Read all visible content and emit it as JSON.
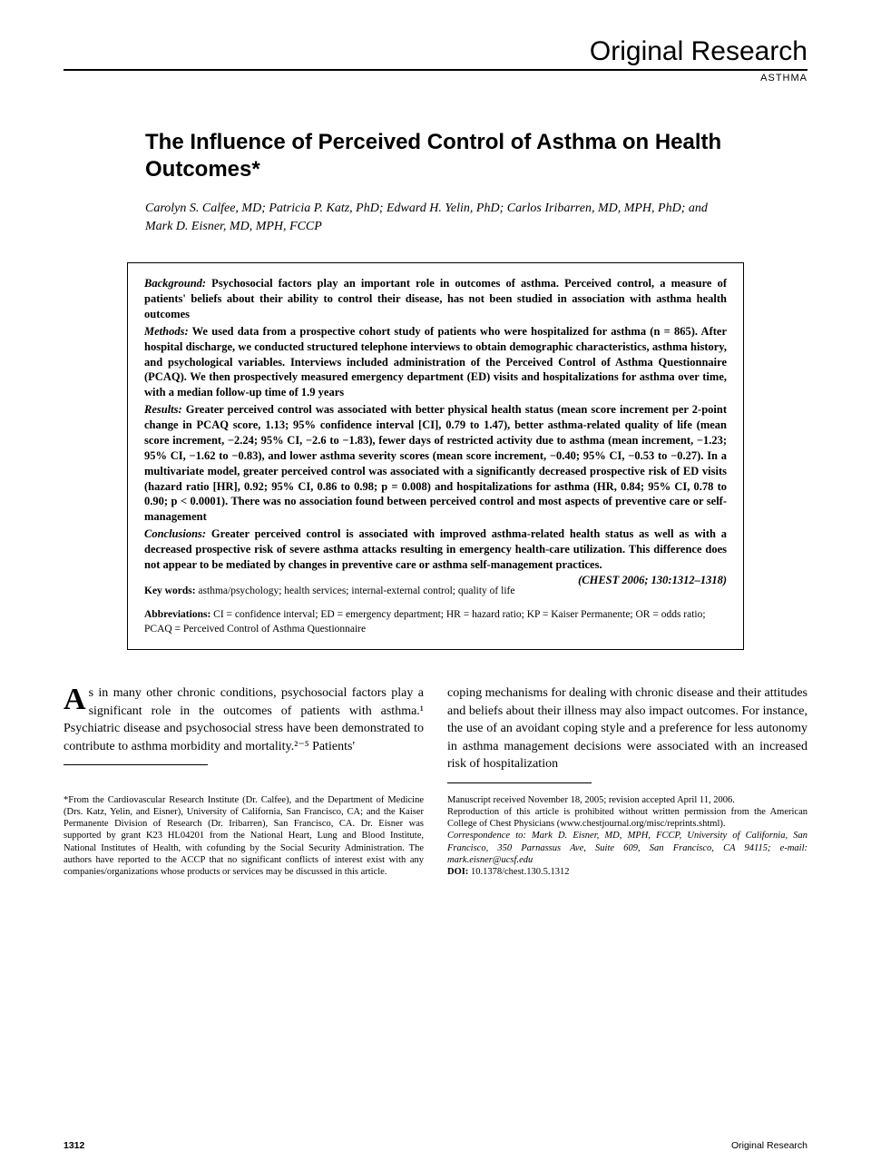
{
  "header": {
    "section_title": "Original Research",
    "section_subtitle": "ASTHMA"
  },
  "article": {
    "title": "The Influence of Perceived Control of Asthma on Health Outcomes*",
    "authors": "Carolyn S. Calfee, MD; Patricia P. Katz, PhD; Edward H. Yelin, PhD; Carlos Iribarren, MD, MPH, PhD; and Mark D. Eisner, MD, MPH, FCCP"
  },
  "abstract": {
    "background_label": "Background:",
    "background": " Psychosocial factors play an important role in outcomes of asthma. Perceived control, a measure of patients' beliefs about their ability to control their disease, has not been studied in association with asthma health outcomes",
    "methods_label": "Methods:",
    "methods": " We used data from a prospective cohort study of patients who were hospitalized for asthma (n = 865). After hospital discharge, we conducted structured telephone interviews to obtain demographic characteristics, asthma history, and psychological variables. Interviews included administration of the Perceived Control of Asthma Questionnaire (PCAQ). We then prospectively measured emergency department (ED) visits and hospitalizations for asthma over time, with a median follow-up time of 1.9 years",
    "results_label": "Results:",
    "results": " Greater perceived control was associated with better physical health status (mean score increment per 2-point change in PCAQ score, 1.13; 95% confidence interval [CI], 0.79 to 1.47), better asthma-related quality of life (mean score increment, −2.24; 95% CI, −2.6 to −1.83), fewer days of restricted activity due to asthma (mean increment, −1.23; 95% CI, −1.62 to −0.83), and lower asthma severity scores (mean score increment, −0.40; 95% CI, −0.53 to −0.27). In a multivariate model, greater perceived control was associated with a significantly decreased prospective risk of ED visits (hazard ratio [HR], 0.92; 95% CI, 0.86 to 0.98; p = 0.008) and hospitalizations for asthma (HR, 0.84; 95% CI, 0.78 to 0.90; p < 0.0001). There was no association found between perceived control and most aspects of preventive care or self-management",
    "conclusions_label": "Conclusions:",
    "conclusions": " Greater perceived control is associated with improved asthma-related health status as well as with a decreased prospective risk of severe asthma attacks resulting in emergency health-care utilization. This difference does not appear to be mediated by changes in preventive care or asthma self-management practices.",
    "citation": "(CHEST 2006; 130:1312–1318)",
    "keywords_label": "Key words:",
    "keywords": " asthma/psychology; health services; internal-external control; quality of life",
    "abbrev_label": "Abbreviations:",
    "abbrev": " CI = confidence interval; ED = emergency department; HR = hazard ratio; KP = Kaiser Permanente; OR = odds ratio; PCAQ = Perceived Control of Asthma Questionnaire"
  },
  "body": {
    "dropcap": "A",
    "col1": "s in many other chronic conditions, psychosocial factors play a significant role in the outcomes of patients with asthma.¹ Psychiatric disease and psychosocial stress have been demonstrated to contribute to asthma morbidity and mortality.²⁻⁵ Patients'",
    "col2": "coping mechanisms for dealing with chronic disease and their attitudes and beliefs about their illness may also impact outcomes. For instance, the use of an avoidant coping style and a preference for less autonomy in asthma management decisions were associated with an increased risk of hospitalization"
  },
  "footnotes": {
    "left": "*From the Cardiovascular Research Institute (Dr. Calfee), and the Department of Medicine (Drs. Katz, Yelin, and Eisner), University of California, San Francisco, CA; and the Kaiser Permanente Division of Research (Dr. Iribarren), San Francisco, CA. Dr. Eisner was supported by grant K23 HL04201 from the National Heart, Lung and Blood Institute, National Institutes of Health, with cofunding by the Social Security Administration. The authors have reported to the ACCP that no significant conflicts of interest exist with any companies/organizations whose products or services may be discussed in this article.",
    "right_line1": "Manuscript received November 18, 2005; revision accepted April 11, 2006.",
    "right_line2": "Reproduction of this article is prohibited without written permission from the American College of Chest Physicians (www.chestjournal.org/misc/reprints.shtml).",
    "right_corr_label": "Correspondence to:",
    "right_corr": " Mark D. Eisner, MD, MPH, FCCP, University of California, San Francisco, 350 Parnassus Ave, Suite 609, San Francisco, CA 94115; e-mail: mark.eisner@ucsf.edu",
    "right_doi_label": "DOI: ",
    "right_doi": "10.1378/chest.130.5.1312"
  },
  "footer": {
    "page": "1312",
    "label": "Original Research"
  },
  "colors": {
    "text": "#000000",
    "background": "#ffffff",
    "rule": "#000000"
  },
  "typography": {
    "section_title_pt": 30,
    "article_title_pt": 24,
    "authors_pt": 14,
    "abstract_pt": 12.5,
    "body_pt": 14,
    "footnote_pt": 10.5,
    "dropcap_pt": 34
  }
}
